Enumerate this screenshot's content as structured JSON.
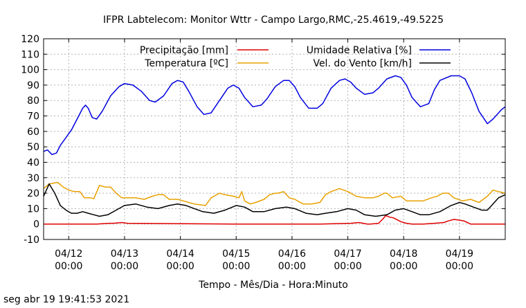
{
  "chart_data": {
    "type": "line",
    "title": "IFPR Labtelecom: Monitor Wttr - Campo Largo,RMC,-25.4619,-49.5225",
    "xlabel": "Tempo - Mês/Dia - Hora:Minuto",
    "ylabel": "",
    "ylim": [
      -10,
      120
    ],
    "yticks": [
      "120",
      "110",
      "100",
      "90",
      "80",
      "70",
      "60",
      "50",
      "40",
      "30",
      "20",
      "10",
      "0",
      "-10"
    ],
    "xlim_days": [
      11.55,
      19.82
    ],
    "xticks": [
      {
        "day": 12,
        "date": "04/12",
        "time": "00:00"
      },
      {
        "day": 13,
        "date": "04/13",
        "time": "00:00"
      },
      {
        "day": 14,
        "date": "04/14",
        "time": "00:00"
      },
      {
        "day": 15,
        "date": "04/15",
        "time": "00:00"
      },
      {
        "day": 16,
        "date": "04/16",
        "time": "00:00"
      },
      {
        "day": 17,
        "date": "04/17",
        "time": "00:00"
      },
      {
        "day": 18,
        "date": "04/18",
        "time": "00:00"
      },
      {
        "day": 19,
        "date": "04/19",
        "time": "00:00"
      }
    ],
    "grid": true,
    "legend_position": "top",
    "series": [
      {
        "name": "Precipitação [mm]",
        "color": "#e00000",
        "x": [
          11.55,
          12.5,
          12.72,
          12.8,
          12.95,
          13.05,
          15.0,
          16.5,
          17.05,
          17.2,
          17.35,
          17.4,
          17.55,
          17.62,
          17.68,
          17.75,
          17.82,
          17.95,
          18.05,
          18.15,
          18.35,
          18.55,
          18.72,
          18.8,
          18.9,
          19.0,
          19.08,
          19.2,
          19.82
        ],
        "y": [
          0,
          0,
          0.5,
          0.5,
          1,
          0.5,
          0,
          0,
          0.5,
          1,
          0,
          0,
          0.5,
          3,
          5.5,
          4.5,
          4,
          1.5,
          0.5,
          0,
          0,
          0.5,
          1,
          2,
          3,
          2.5,
          2,
          0,
          0
        ]
      },
      {
        "name": "Umidade Relativa [%]",
        "color": "#0000e0",
        "x": [
          11.55,
          11.62,
          11.7,
          11.78,
          11.85,
          11.95,
          12.05,
          12.15,
          12.25,
          12.3,
          12.35,
          12.42,
          12.5,
          12.6,
          12.75,
          12.9,
          13.0,
          13.15,
          13.3,
          13.45,
          13.55,
          13.7,
          13.85,
          13.95,
          14.05,
          14.15,
          14.3,
          14.42,
          14.55,
          14.7,
          14.85,
          14.95,
          15.05,
          15.15,
          15.3,
          15.45,
          15.55,
          15.7,
          15.85,
          15.95,
          16.05,
          16.15,
          16.3,
          16.45,
          16.55,
          16.7,
          16.85,
          16.95,
          17.05,
          17.15,
          17.3,
          17.45,
          17.55,
          17.7,
          17.85,
          17.95,
          18.05,
          18.15,
          18.3,
          18.45,
          18.55,
          18.65,
          18.85,
          19.0,
          19.1,
          19.22,
          19.35,
          19.5,
          19.6,
          19.75,
          19.82
        ],
        "y": [
          47,
          48,
          45,
          46,
          51,
          56,
          61,
          68,
          75,
          77,
          75,
          69,
          68,
          73,
          83,
          89,
          91,
          90,
          86,
          80,
          79,
          83,
          91,
          93,
          92,
          86,
          76,
          71,
          72,
          80,
          88,
          90,
          88,
          82,
          76,
          77,
          81,
          89,
          93,
          93,
          89,
          82,
          75,
          75,
          78,
          88,
          93,
          94,
          92,
          88,
          84,
          85,
          88,
          94,
          96,
          95,
          90,
          82,
          76,
          78,
          87,
          93,
          96,
          96,
          94,
          85,
          73,
          65,
          68,
          74,
          76
        ]
      },
      {
        "name": "Temperatura [ºC]",
        "color": "#e8a000",
        "x": [
          11.55,
          11.65,
          11.8,
          11.9,
          12.0,
          12.1,
          12.2,
          12.28,
          12.38,
          12.45,
          12.55,
          12.65,
          12.75,
          12.85,
          12.95,
          13.05,
          13.2,
          13.35,
          13.5,
          13.6,
          13.7,
          13.8,
          13.95,
          14.05,
          14.15,
          14.25,
          14.45,
          14.55,
          14.7,
          14.8,
          14.95,
          15.05,
          15.1,
          15.15,
          15.25,
          15.35,
          15.5,
          15.6,
          15.7,
          15.75,
          15.85,
          15.95,
          16.05,
          16.2,
          16.35,
          16.5,
          16.6,
          16.7,
          16.85,
          17.0,
          17.15,
          17.3,
          17.45,
          17.55,
          17.65,
          17.7,
          17.8,
          17.95,
          18.05,
          18.2,
          18.35,
          18.5,
          18.6,
          18.7,
          18.8,
          18.9,
          19.05,
          19.2,
          19.35,
          19.5,
          19.6,
          19.7,
          19.82
        ],
        "y": [
          23,
          26,
          27,
          24,
          22,
          21,
          21,
          17,
          17,
          16.5,
          25,
          24,
          24,
          20,
          17,
          17,
          17,
          16,
          18,
          19,
          19,
          16,
          16,
          15,
          14,
          13,
          12,
          17,
          20,
          19,
          18,
          17,
          21,
          15,
          13,
          14,
          16,
          19,
          20,
          20,
          21,
          17,
          16,
          13,
          13,
          14,
          19,
          21,
          23,
          21,
          18,
          17,
          17,
          18,
          20,
          20,
          17,
          18,
          15,
          15,
          15,
          17,
          18,
          20,
          20,
          17,
          15,
          16,
          14,
          18,
          22,
          21,
          20
        ]
      },
      {
        "name": "Vel. do Vento [km/h]",
        "color": "#000000",
        "x": [
          11.55,
          11.65,
          11.75,
          11.85,
          11.95,
          12.05,
          12.15,
          12.25,
          12.35,
          12.45,
          12.55,
          12.7,
          12.85,
          13.0,
          13.2,
          13.4,
          13.6,
          13.8,
          13.95,
          14.1,
          14.25,
          14.4,
          14.6,
          14.8,
          15.0,
          15.15,
          15.3,
          15.5,
          15.7,
          15.9,
          16.05,
          16.25,
          16.45,
          16.6,
          16.8,
          17.0,
          17.15,
          17.3,
          17.5,
          17.7,
          17.85,
          18.0,
          18.15,
          18.3,
          18.45,
          18.65,
          18.85,
          19.0,
          19.1,
          19.25,
          19.4,
          19.5,
          19.6,
          19.7,
          19.82
        ],
        "y": [
          18,
          26,
          20,
          12,
          9,
          7,
          7,
          8,
          7,
          6,
          5,
          6,
          9,
          12,
          13,
          11,
          10,
          12,
          13,
          12,
          10,
          8,
          7,
          9,
          12,
          11,
          8,
          8,
          10,
          11,
          10,
          7,
          6,
          7,
          8,
          10,
          9,
          6,
          5,
          6,
          9,
          10,
          8,
          6,
          6,
          8,
          12,
          14,
          13,
          11,
          9,
          9,
          13,
          17,
          19
        ]
      }
    ]
  },
  "footer": {
    "timestamp": "seg abr 19 19:41:53 2021"
  }
}
